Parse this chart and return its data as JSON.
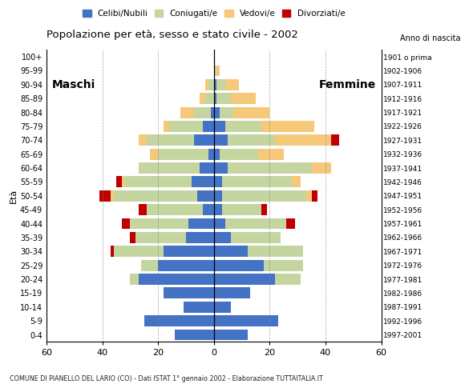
{
  "age_groups": [
    "0-4",
    "5-9",
    "10-14",
    "15-19",
    "20-24",
    "25-29",
    "30-34",
    "35-39",
    "40-44",
    "45-49",
    "50-54",
    "55-59",
    "60-64",
    "65-69",
    "70-74",
    "75-79",
    "80-84",
    "85-89",
    "90-94",
    "95-99",
    "100+"
  ],
  "birth_years": [
    "1997-2001",
    "1992-1996",
    "1987-1991",
    "1982-1986",
    "1977-1981",
    "1972-1976",
    "1967-1971",
    "1962-1966",
    "1957-1961",
    "1952-1956",
    "1947-1951",
    "1942-1946",
    "1937-1941",
    "1932-1936",
    "1927-1931",
    "1922-1926",
    "1917-1921",
    "1912-1916",
    "1907-1911",
    "1902-1906",
    "1901 o prima"
  ],
  "males": {
    "celibi": [
      14,
      25,
      11,
      18,
      27,
      20,
      18,
      10,
      9,
      4,
      6,
      8,
      5,
      2,
      7,
      4,
      1,
      0,
      0,
      0,
      0
    ],
    "coniugati": [
      0,
      0,
      0,
      0,
      3,
      6,
      18,
      18,
      21,
      20,
      30,
      24,
      22,
      18,
      17,
      12,
      6,
      3,
      2,
      0,
      0
    ],
    "vedovi": [
      0,
      0,
      0,
      0,
      0,
      0,
      0,
      0,
      0,
      0,
      1,
      1,
      0,
      3,
      3,
      2,
      5,
      2,
      1,
      0,
      0
    ],
    "divorziati": [
      0,
      0,
      0,
      0,
      0,
      0,
      1,
      2,
      3,
      3,
      4,
      2,
      0,
      0,
      0,
      0,
      0,
      0,
      0,
      0,
      0
    ]
  },
  "females": {
    "nubili": [
      12,
      23,
      6,
      13,
      22,
      18,
      12,
      6,
      4,
      3,
      3,
      3,
      5,
      2,
      5,
      4,
      2,
      1,
      1,
      0,
      0
    ],
    "coniugate": [
      0,
      0,
      0,
      0,
      9,
      14,
      20,
      18,
      22,
      14,
      30,
      25,
      30,
      14,
      17,
      13,
      5,
      5,
      3,
      1,
      0
    ],
    "vedove": [
      0,
      0,
      0,
      0,
      0,
      0,
      0,
      0,
      0,
      0,
      2,
      3,
      7,
      9,
      20,
      19,
      13,
      9,
      5,
      1,
      0
    ],
    "divorziate": [
      0,
      0,
      0,
      0,
      0,
      0,
      0,
      0,
      3,
      2,
      2,
      0,
      0,
      0,
      3,
      0,
      0,
      0,
      0,
      0,
      0
    ]
  },
  "colors": {
    "celibi": "#4472C4",
    "coniugati": "#C5D5A0",
    "vedovi": "#F5C87A",
    "divorziati": "#C00000"
  },
  "legend_labels": [
    "Celibi/Nubili",
    "Coniugati/e",
    "Vedovi/e",
    "Divorziati/e"
  ],
  "title": "Popolazione per età, sesso e stato civile - 2002",
  "subtitle": "COMUNE DI PIANELLO DEL LARIO (CO) - Dati ISTAT 1° gennaio 2002 - Elaborazione TUTTAITALIA.IT",
  "xlabel_left": "Maschi",
  "xlabel_right": "Femmine",
  "xlim": 60,
  "ylabel": "Età",
  "right_label": "Anno di nascita",
  "background_color": "#FFFFFF"
}
